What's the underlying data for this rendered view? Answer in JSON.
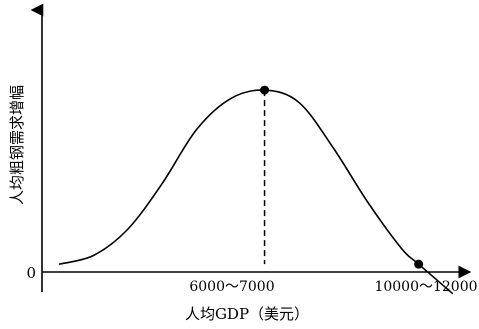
{
  "chart_data": {
    "type": "line",
    "title": "",
    "xlabel": "人均GDP（美元）",
    "ylabel": "人均粗钢需求增幅",
    "origin_label": "0",
    "x_markers": [
      {
        "label": "6000～7000",
        "value": 6500
      },
      {
        "label": "10000～12000",
        "value": 11000
      }
    ],
    "series": [
      {
        "points": [
          {
            "x": 500,
            "y": 0
          },
          {
            "x": 1500,
            "y": 0.05
          },
          {
            "x": 2500,
            "y": 0.2
          },
          {
            "x": 3500,
            "y": 0.46
          },
          {
            "x": 4500,
            "y": 0.77
          },
          {
            "x": 5500,
            "y": 0.95
          },
          {
            "x": 6500,
            "y": 1.0
          },
          {
            "x": 7500,
            "y": 0.93
          },
          {
            "x": 8500,
            "y": 0.67
          },
          {
            "x": 9500,
            "y": 0.36
          },
          {
            "x": 10500,
            "y": 0.09
          },
          {
            "x": 11000,
            "y": 0.0
          },
          {
            "x": 12000,
            "y": -0.17
          }
        ]
      }
    ],
    "highlight_points": [
      {
        "x": 6500,
        "y": 1.0
      },
      {
        "x": 11000,
        "y": 0.0
      }
    ],
    "xlim": [
      0,
      12500
    ],
    "ylim": [
      -0.2,
      1.46
    ],
    "grid": false,
    "legend": "none"
  }
}
